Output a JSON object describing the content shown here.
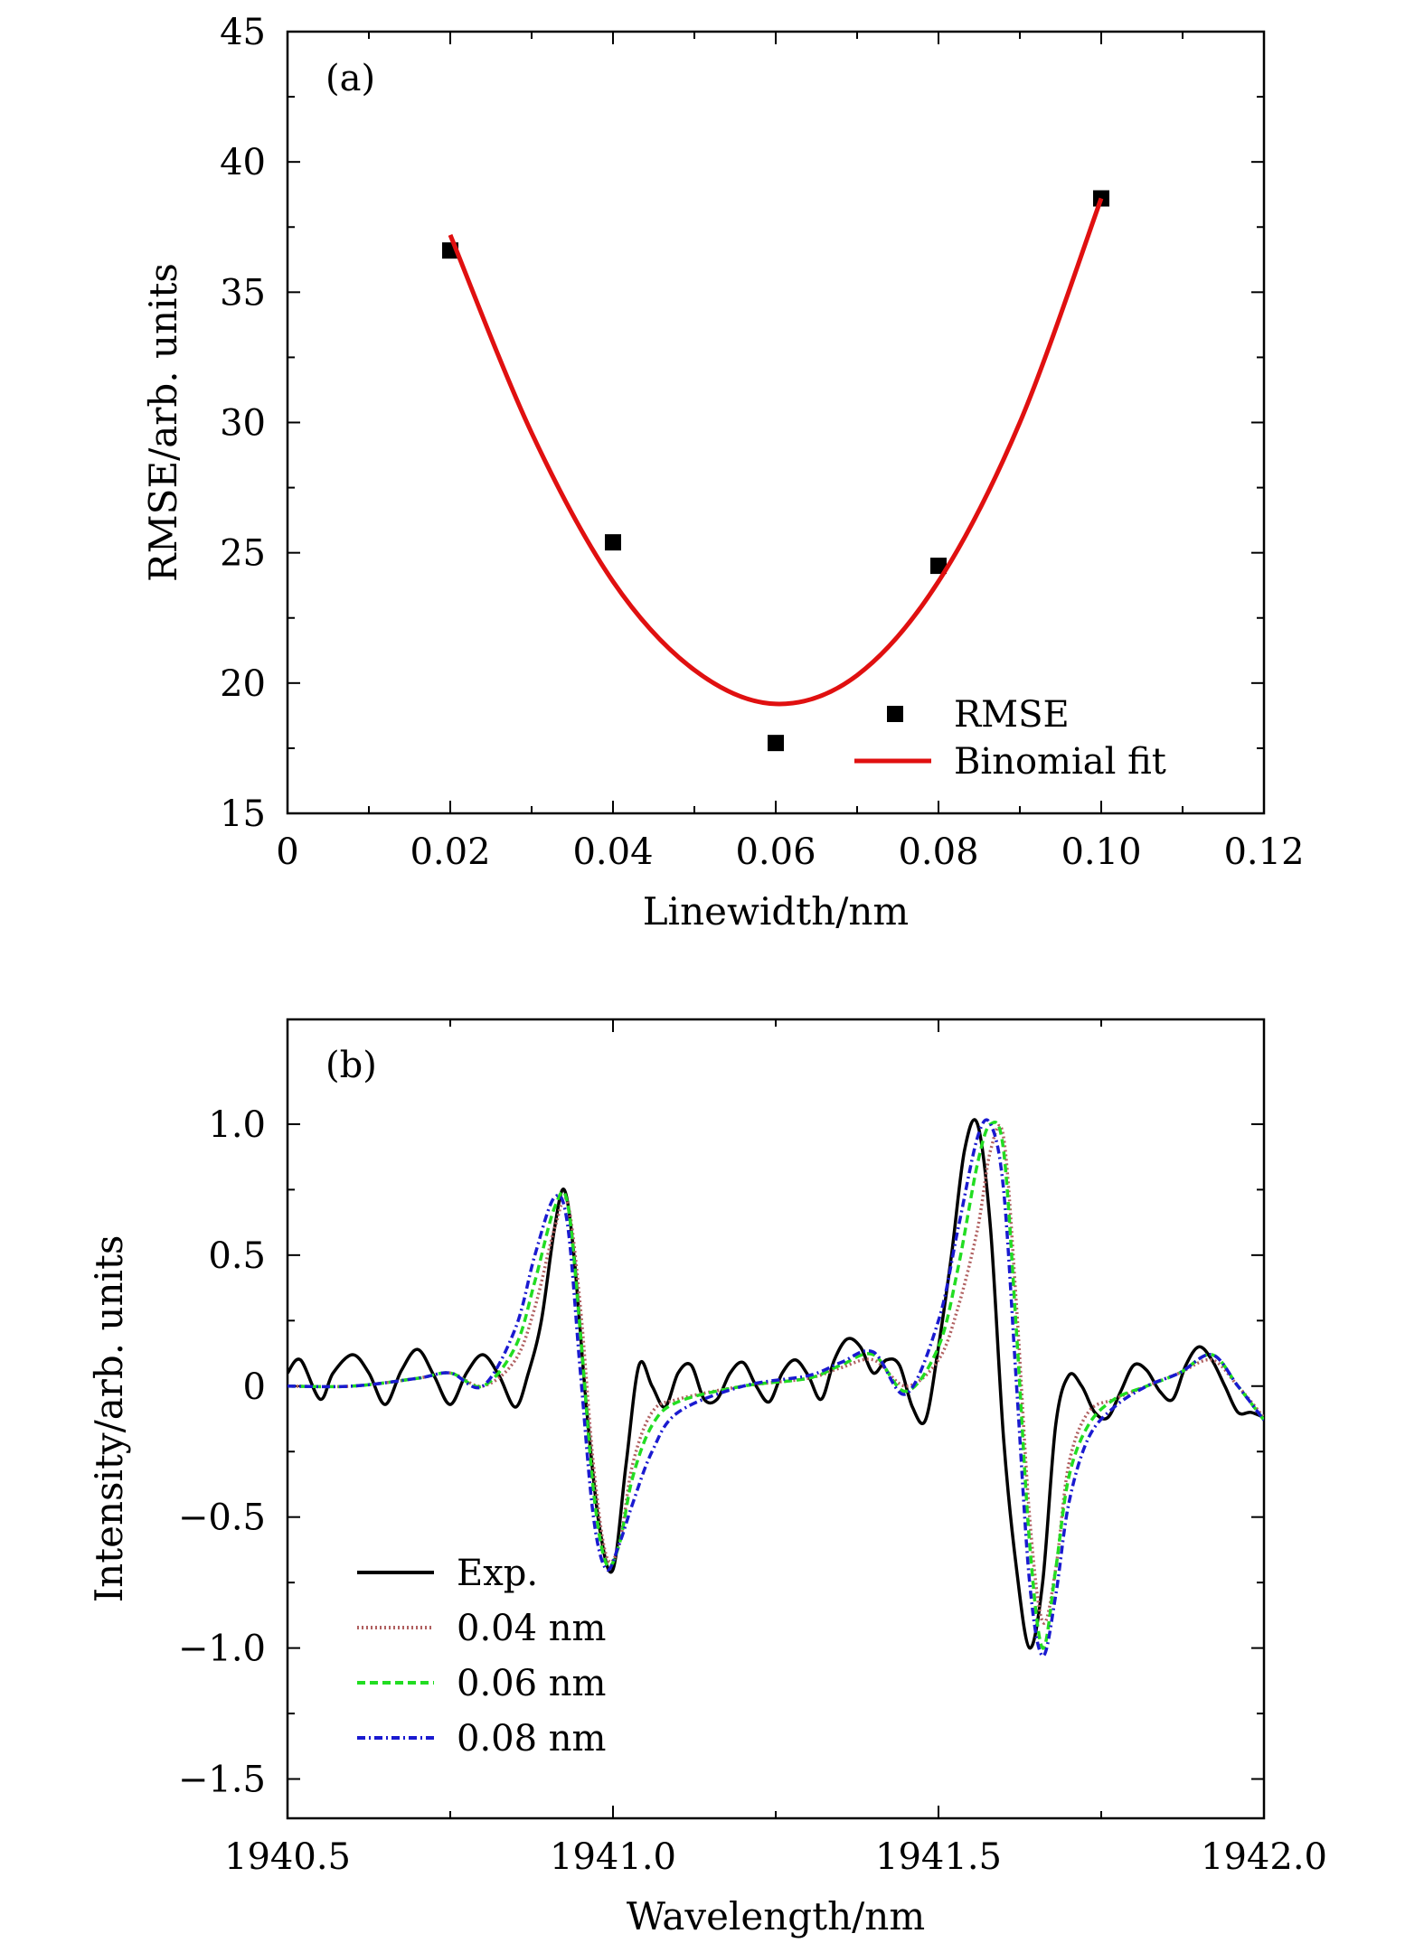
{
  "chart_data": [
    {
      "type": "scatter",
      "panel_label": "(a)",
      "xlabel": "Linewidth/nm",
      "ylabel": "RMSE/arb. units",
      "xlim": [
        0,
        0.12
      ],
      "ylim": [
        15,
        45
      ],
      "x_ticks": [
        0,
        0.02,
        0.04,
        0.06,
        0.08,
        0.1,
        0.12
      ],
      "x_tick_labels": [
        "0",
        "0.02",
        "0.04",
        "0.06",
        "0.08",
        "0.10",
        "0.12"
      ],
      "y_ticks": [
        15,
        20,
        25,
        30,
        35,
        40,
        45
      ],
      "y_tick_labels": [
        "15",
        "20",
        "25",
        "30",
        "35",
        "40",
        "45"
      ],
      "legend_position": "bottom-right",
      "series": [
        {
          "name": "RMSE",
          "kind": "scatter",
          "marker": "square",
          "color": "#000000",
          "x": [
            0.02,
            0.04,
            0.06,
            0.08,
            0.1
          ],
          "y": [
            36.6,
            25.4,
            17.7,
            24.5,
            38.6
          ]
        },
        {
          "name": "Binomial fit",
          "kind": "line",
          "color": "#e01010",
          "x": [
            0.02,
            0.03,
            0.04,
            0.05,
            0.06,
            0.07,
            0.08,
            0.09,
            0.1
          ],
          "y": [
            37.2,
            29.6,
            23.9,
            20.5,
            19.2,
            20.3,
            23.9,
            30.0,
            38.6
          ]
        }
      ]
    },
    {
      "type": "line",
      "panel_label": "(b)",
      "xlabel": "Wavelength/nm",
      "ylabel": "Intensity/arb. units",
      "xlim": [
        1940.5,
        1942.0
      ],
      "ylim": [
        -1.65,
        1.4
      ],
      "x_ticks": [
        1940.5,
        1941.0,
        1941.5,
        1942.0
      ],
      "x_tick_labels": [
        "1940.5",
        "1941.0",
        "1941.5",
        "1942.0"
      ],
      "y_ticks": [
        -1.5,
        -1.0,
        -0.5,
        0,
        0.5,
        1.0
      ],
      "y_tick_labels": [
        "−1.5",
        "−1.0",
        "−0.5",
        "0",
        "0.5",
        "1.0"
      ],
      "legend_position": "bottom-left",
      "series": [
        {
          "name": "Exp.",
          "color": "#000000",
          "style": "solid",
          "x": [
            1940.5,
            1940.52,
            1940.55,
            1940.57,
            1940.6,
            1940.625,
            1940.65,
            1940.675,
            1940.7,
            1940.725,
            1940.75,
            1940.775,
            1940.8,
            1940.825,
            1940.85,
            1940.87,
            1940.89,
            1940.91,
            1940.925,
            1940.94,
            1940.96,
            1940.98,
            1941.0,
            1941.02,
            1941.04,
            1941.06,
            1941.08,
            1941.1,
            1941.12,
            1941.14,
            1941.16,
            1941.18,
            1941.2,
            1941.22,
            1941.24,
            1941.26,
            1941.28,
            1941.3,
            1941.32,
            1941.34,
            1941.36,
            1941.38,
            1941.4,
            1941.42,
            1941.44,
            1941.46,
            1941.48,
            1941.5,
            1941.52,
            1941.54,
            1941.56,
            1941.58,
            1941.6,
            1941.62,
            1941.64,
            1941.66,
            1941.68,
            1941.7,
            1941.72,
            1941.74,
            1941.76,
            1941.78,
            1941.8,
            1941.82,
            1941.84,
            1941.86,
            1941.88,
            1941.9,
            1941.92,
            1941.94,
            1941.96,
            1941.98,
            1942.0
          ],
          "y": [
            0.05,
            0.1,
            -0.05,
            0.05,
            0.12,
            0.05,
            -0.07,
            0.06,
            0.14,
            0.04,
            -0.07,
            0.05,
            0.12,
            0.04,
            -0.08,
            0.05,
            0.25,
            0.6,
            0.75,
            0.5,
            -0.1,
            -0.55,
            -0.7,
            -0.3,
            0.08,
            0.0,
            -0.08,
            0.05,
            0.08,
            -0.05,
            -0.05,
            0.05,
            0.09,
            0.0,
            -0.06,
            0.05,
            0.1,
            0.04,
            -0.05,
            0.1,
            0.18,
            0.15,
            0.05,
            0.1,
            0.08,
            -0.08,
            -0.13,
            0.15,
            0.5,
            0.9,
            1.0,
            0.6,
            -0.2,
            -0.7,
            -1.0,
            -0.75,
            -0.15,
            0.04,
            0.0,
            -0.1,
            -0.12,
            -0.02,
            0.08,
            0.06,
            -0.02,
            -0.05,
            0.08,
            0.15,
            0.1,
            0.0,
            -0.1,
            -0.1,
            -0.12
          ]
        },
        {
          "name": "0.04 nm",
          "color": "#b06060",
          "style": "dotted",
          "x": [
            1940.5,
            1940.6,
            1940.7,
            1940.75,
            1940.8,
            1940.85,
            1940.88,
            1940.91,
            1940.93,
            1940.95,
            1940.97,
            1940.99,
            1941.01,
            1941.03,
            1941.06,
            1941.1,
            1941.2,
            1941.3,
            1941.35,
            1941.4,
            1941.45,
            1941.5,
            1941.53,
            1941.56,
            1941.58,
            1941.6,
            1941.62,
            1941.64,
            1941.66,
            1941.68,
            1941.7,
            1941.73,
            1941.77,
            1941.82,
            1941.87,
            1941.92,
            1941.96,
            1942.0
          ],
          "y": [
            0.0,
            0.0,
            0.03,
            0.05,
            0.0,
            0.1,
            0.3,
            0.6,
            0.7,
            0.3,
            -0.3,
            -0.65,
            -0.6,
            -0.3,
            -0.1,
            -0.05,
            0.0,
            0.03,
            0.07,
            0.1,
            0.0,
            0.1,
            0.3,
            0.6,
            0.9,
            0.95,
            0.3,
            -0.5,
            -0.9,
            -0.7,
            -0.3,
            -0.1,
            -0.05,
            0.0,
            0.05,
            0.1,
            0.0,
            -0.12
          ]
        },
        {
          "name": "0.06 nm",
          "color": "#22dd22",
          "style": "dashed",
          "x": [
            1940.5,
            1940.6,
            1940.7,
            1940.75,
            1940.8,
            1940.85,
            1940.88,
            1940.91,
            1940.93,
            1940.95,
            1940.97,
            1940.99,
            1941.01,
            1941.03,
            1941.06,
            1941.1,
            1941.2,
            1941.3,
            1941.35,
            1941.4,
            1941.45,
            1941.5,
            1941.53,
            1941.56,
            1941.58,
            1941.6,
            1941.62,
            1941.64,
            1941.66,
            1941.68,
            1941.7,
            1941.73,
            1941.77,
            1941.82,
            1941.87,
            1941.92,
            1941.96,
            1942.0
          ],
          "y": [
            0.0,
            0.0,
            0.03,
            0.05,
            0.0,
            0.15,
            0.4,
            0.68,
            0.7,
            0.2,
            -0.4,
            -0.68,
            -0.6,
            -0.35,
            -0.15,
            -0.06,
            0.0,
            0.03,
            0.08,
            0.12,
            -0.02,
            0.15,
            0.45,
            0.85,
            1.0,
            0.9,
            0.2,
            -0.6,
            -1.0,
            -0.7,
            -0.35,
            -0.15,
            -0.05,
            0.0,
            0.05,
            0.12,
            0.0,
            -0.13
          ]
        },
        {
          "name": "0.08 nm",
          "color": "#1a1ad0",
          "style": "dashdot",
          "x": [
            1940.5,
            1940.6,
            1940.7,
            1940.75,
            1940.8,
            1940.85,
            1940.88,
            1940.91,
            1940.93,
            1940.95,
            1940.97,
            1940.99,
            1941.01,
            1941.03,
            1941.06,
            1941.1,
            1941.2,
            1941.3,
            1941.35,
            1941.4,
            1941.45,
            1941.5,
            1941.53,
            1941.56,
            1941.58,
            1941.6,
            1941.62,
            1941.64,
            1941.66,
            1941.68,
            1941.7,
            1941.73,
            1941.77,
            1941.82,
            1941.87,
            1941.92,
            1941.96,
            1942.0
          ],
          "y": [
            0.0,
            0.0,
            0.03,
            0.05,
            0.0,
            0.22,
            0.5,
            0.72,
            0.62,
            0.05,
            -0.5,
            -0.7,
            -0.6,
            -0.45,
            -0.25,
            -0.1,
            0.0,
            0.04,
            0.09,
            0.13,
            -0.03,
            0.25,
            0.6,
            0.95,
            1.0,
            0.75,
            0.0,
            -0.75,
            -1.03,
            -0.8,
            -0.45,
            -0.2,
            -0.08,
            0.0,
            0.05,
            0.12,
            0.0,
            -0.13
          ]
        }
      ]
    }
  ]
}
